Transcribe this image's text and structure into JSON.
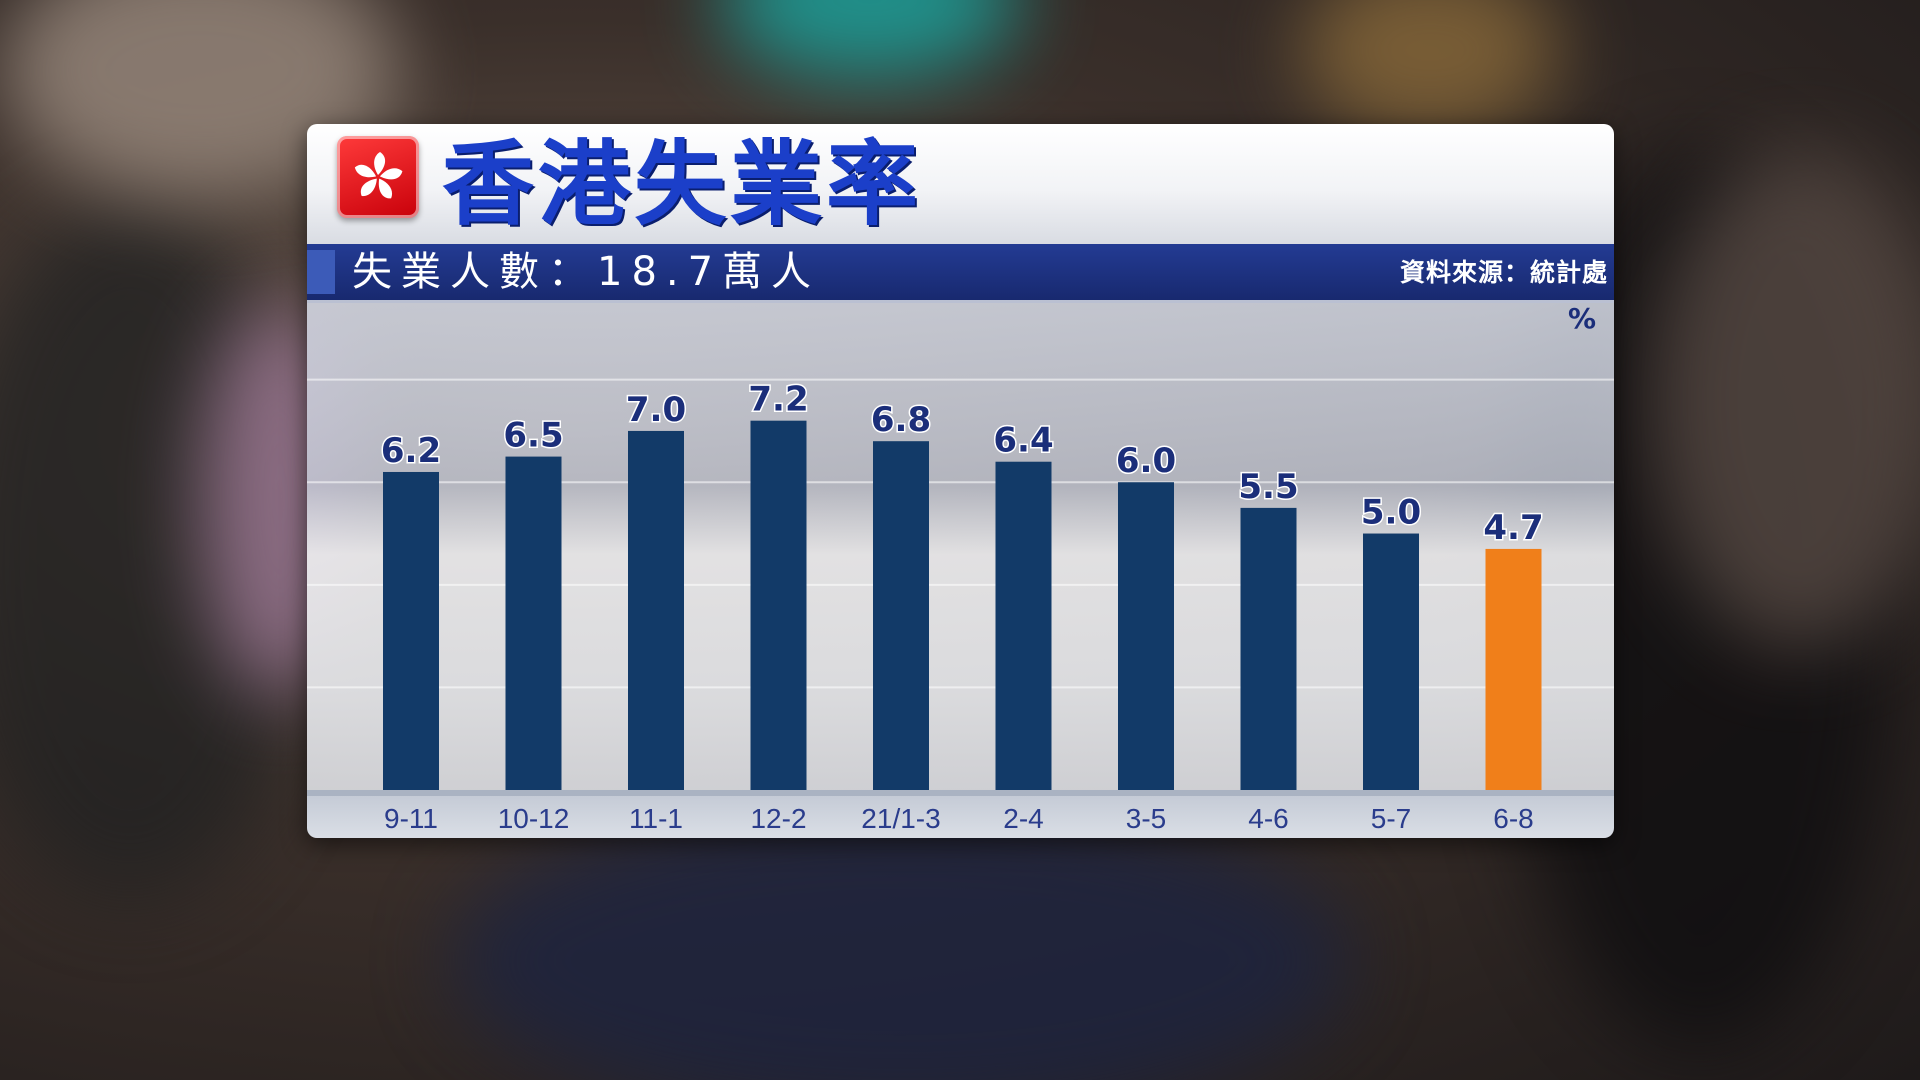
{
  "title": "香港失業率",
  "subtitle": "失業人數：18.7萬人",
  "source": "資料來源：統計處",
  "chart_data": {
    "type": "bar",
    "title": "香港失業率",
    "subtitle": "失業人數：18.7萬人",
    "unit": "%",
    "categories": [
      "9-11",
      "10-12",
      "11-1",
      "12-2",
      "21/1-3",
      "2-4",
      "3-5",
      "4-6",
      "5-7",
      "6-8"
    ],
    "values": [
      6.2,
      6.5,
      7.0,
      7.2,
      6.8,
      6.4,
      6.0,
      5.5,
      5.0,
      4.7
    ],
    "value_labels": [
      "6.2",
      "6.5",
      "7.0",
      "7.2",
      "6.8",
      "6.4",
      "6.0",
      "5.5",
      "5.0",
      "4.7"
    ],
    "ylim": [
      0,
      8.5
    ],
    "grid": true,
    "colors": {
      "bar": "#123a68",
      "highlight": "#f07f1a",
      "label": "#1b2e7a",
      "tick": "#2a3c8c"
    },
    "highlight_index": 9
  }
}
